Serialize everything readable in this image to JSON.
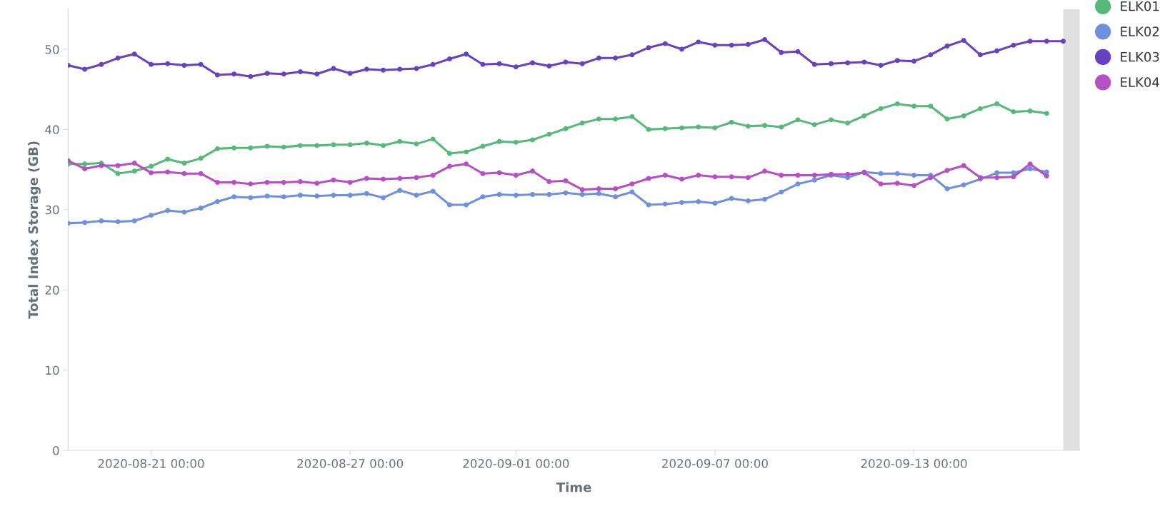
{
  "chart_data": {
    "type": "line",
    "xlabel": "Time",
    "ylabel": "Total Index Storage (GB)",
    "x": [
      "2020-08-18T12:00",
      "2020-08-19T00:00",
      "2020-08-19T12:00",
      "2020-08-20T00:00",
      "2020-08-20T12:00",
      "2020-08-21T00:00",
      "2020-08-21T12:00",
      "2020-08-22T00:00",
      "2020-08-22T12:00",
      "2020-08-23T00:00",
      "2020-08-23T12:00",
      "2020-08-24T00:00",
      "2020-08-24T12:00",
      "2020-08-25T00:00",
      "2020-08-25T12:00",
      "2020-08-26T00:00",
      "2020-08-26T12:00",
      "2020-08-27T00:00",
      "2020-08-27T12:00",
      "2020-08-28T00:00",
      "2020-08-28T12:00",
      "2020-08-29T00:00",
      "2020-08-29T12:00",
      "2020-08-30T00:00",
      "2020-08-30T12:00",
      "2020-08-31T00:00",
      "2020-08-31T12:00",
      "2020-09-01T00:00",
      "2020-09-01T12:00",
      "2020-09-02T00:00",
      "2020-09-02T12:00",
      "2020-09-03T00:00",
      "2020-09-03T12:00",
      "2020-09-04T00:00",
      "2020-09-04T12:00",
      "2020-09-05T00:00",
      "2020-09-05T12:00",
      "2020-09-06T00:00",
      "2020-09-06T12:00",
      "2020-09-07T00:00",
      "2020-09-07T12:00",
      "2020-09-08T00:00",
      "2020-09-08T12:00",
      "2020-09-09T00:00",
      "2020-09-09T12:00",
      "2020-09-10T00:00",
      "2020-09-10T12:00",
      "2020-09-11T00:00",
      "2020-09-11T12:00",
      "2020-09-12T00:00",
      "2020-09-12T12:00",
      "2020-09-13T00:00",
      "2020-09-13T12:00",
      "2020-09-14T00:00",
      "2020-09-14T12:00",
      "2020-09-15T00:00",
      "2020-09-15T12:00",
      "2020-09-16T00:00",
      "2020-09-16T12:00",
      "2020-09-17T00:00",
      "2020-09-17T12:00"
    ],
    "series": [
      {
        "name": "ELK01",
        "color": "#54b979",
        "values": [
          35.7,
          35.7,
          35.8,
          34.5,
          34.8,
          35.4,
          36.3,
          35.8,
          36.4,
          37.6,
          37.7,
          37.7,
          37.9,
          37.8,
          38.0,
          38.0,
          38.1,
          38.1,
          38.3,
          38.0,
          38.5,
          38.2,
          38.8,
          37.0,
          37.2,
          37.9,
          38.5,
          38.4,
          38.7,
          39.4,
          40.1,
          40.8,
          41.3,
          41.3,
          41.6,
          40.0,
          40.1,
          40.2,
          40.3,
          40.2,
          40.9,
          40.4,
          40.5,
          40.3,
          41.2,
          40.6,
          41.2,
          40.8,
          41.7,
          42.6,
          43.2,
          42.9,
          42.9,
          41.3,
          41.7,
          42.6,
          43.2,
          42.2,
          42.3,
          42.0,
          null
        ]
      },
      {
        "name": "ELK02",
        "color": "#6f8fdf",
        "values": [
          28.3,
          28.4,
          28.6,
          28.5,
          28.6,
          29.3,
          29.9,
          29.7,
          30.2,
          31.0,
          31.6,
          31.5,
          31.7,
          31.6,
          31.8,
          31.7,
          31.8,
          31.8,
          32.0,
          31.5,
          32.4,
          31.8,
          32.3,
          30.6,
          30.6,
          31.6,
          31.9,
          31.8,
          31.9,
          31.9,
          32.1,
          31.9,
          32.0,
          31.6,
          32.2,
          30.6,
          30.7,
          30.9,
          31.0,
          30.8,
          31.4,
          31.1,
          31.3,
          32.2,
          33.2,
          33.7,
          34.3,
          34.0,
          34.7,
          34.5,
          34.5,
          34.3,
          34.3,
          32.6,
          33.1,
          33.8,
          34.6,
          34.6,
          35.1,
          34.7,
          null
        ]
      },
      {
        "name": "ELK03",
        "color": "#6741bf",
        "values": [
          48.0,
          47.5,
          48.1,
          48.9,
          49.4,
          48.1,
          48.2,
          48.0,
          48.1,
          46.8,
          46.9,
          46.6,
          47.0,
          46.9,
          47.2,
          46.9,
          47.6,
          47.0,
          47.5,
          47.4,
          47.5,
          47.6,
          48.1,
          48.8,
          49.4,
          48.1,
          48.2,
          47.8,
          48.3,
          47.9,
          48.4,
          48.2,
          48.9,
          48.9,
          49.3,
          50.2,
          50.7,
          50.0,
          50.9,
          50.5,
          50.5,
          50.6,
          51.2,
          49.6,
          49.7,
          48.1,
          48.2,
          48.3,
          48.4,
          48.0,
          48.6,
          48.5,
          49.3,
          50.4,
          51.1,
          49.3,
          49.8,
          50.5,
          51.0,
          51.0,
          51.0
        ]
      },
      {
        "name": "ELK04",
        "color": "#b64fc5",
        "values": [
          36.1,
          35.1,
          35.5,
          35.5,
          35.8,
          34.6,
          34.7,
          34.5,
          34.5,
          33.4,
          33.4,
          33.2,
          33.4,
          33.4,
          33.5,
          33.3,
          33.7,
          33.4,
          33.9,
          33.8,
          33.9,
          34.0,
          34.3,
          35.4,
          35.7,
          34.5,
          34.6,
          34.3,
          34.8,
          33.5,
          33.6,
          32.5,
          32.6,
          32.6,
          33.2,
          33.9,
          34.3,
          33.8,
          34.3,
          34.1,
          34.1,
          34.0,
          34.8,
          34.3,
          34.3,
          34.3,
          34.4,
          34.4,
          34.6,
          33.2,
          33.3,
          33.0,
          34.0,
          34.9,
          35.5,
          34.0,
          34.0,
          34.1,
          35.7,
          34.2,
          null
        ]
      }
    ],
    "xlim": [
      "2020-08-18T12:00",
      "2020-09-18T00:00"
    ],
    "xticks": [
      {
        "value": "2020-08-21T00:00",
        "label": "2020-08-21 00:00"
      },
      {
        "value": "2020-08-27T00:00",
        "label": "2020-08-27 00:00"
      },
      {
        "value": "2020-09-01T00:00",
        "label": "2020-09-01 00:00"
      },
      {
        "value": "2020-09-07T00:00",
        "label": "2020-09-07 00:00"
      },
      {
        "value": "2020-09-13T00:00",
        "label": "2020-09-13 00:00"
      }
    ],
    "ylim": [
      0,
      55
    ],
    "yticks": [
      0,
      10,
      20,
      30,
      40,
      50
    ],
    "bands": [
      {
        "axis": "x",
        "from": "2020-09-17T12:00",
        "to": "2020-09-18T00:00",
        "color": "#e0e0e0"
      }
    ],
    "grid": false,
    "legend": "right",
    "marker": "circle",
    "line_style": "solid"
  }
}
